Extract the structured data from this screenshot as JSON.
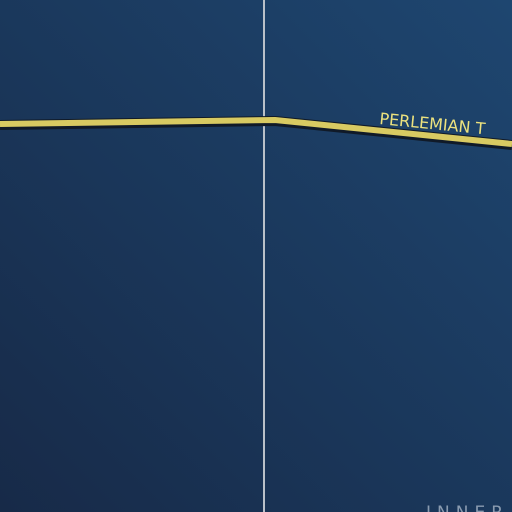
{
  "labels": {
    "route": "PERLEMIAN T",
    "region": "INNER"
  }
}
